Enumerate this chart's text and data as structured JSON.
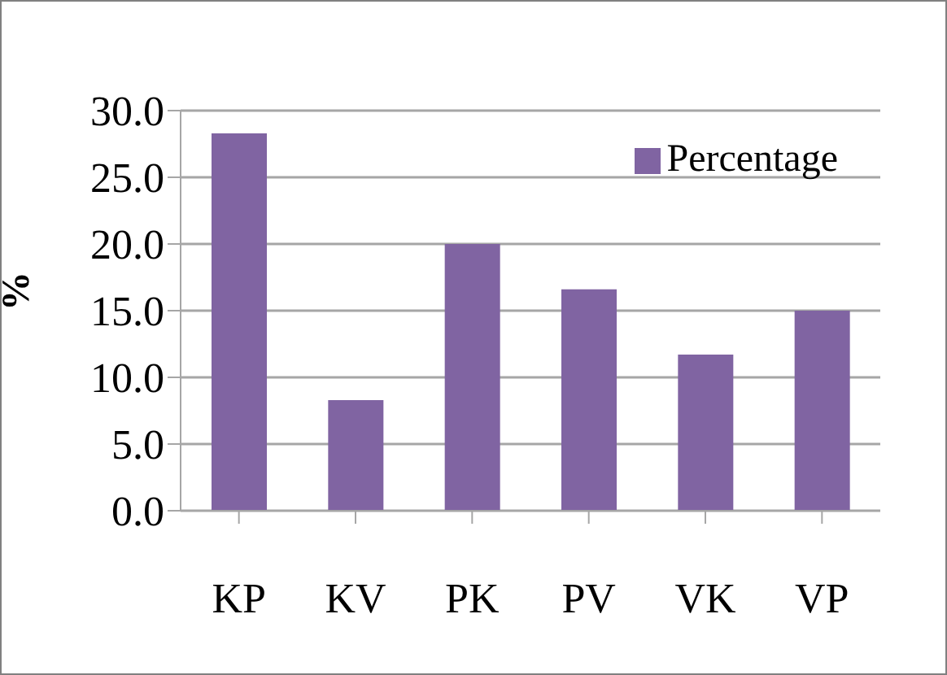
{
  "chart_data": {
    "type": "bar",
    "ylabel": "%",
    "categories": [
      "KP",
      "KV",
      "PK",
      "PV",
      "VK",
      "VP"
    ],
    "series": [
      {
        "name": "Percentage",
        "color": "#8064a2",
        "values": [
          28.3,
          8.3,
          20.0,
          16.6,
          11.7,
          15.0
        ]
      }
    ],
    "ylim": [
      0,
      30
    ],
    "yticks": [
      {
        "value": 0,
        "label": "0.0"
      },
      {
        "value": 5,
        "label": "5.0"
      },
      {
        "value": 10,
        "label": "10.0"
      },
      {
        "value": 15,
        "label": "15.0"
      },
      {
        "value": 20,
        "label": "20.0"
      },
      {
        "value": 25,
        "label": "25.0"
      },
      {
        "value": 30,
        "label": "30.0"
      }
    ],
    "grid": "y",
    "legend": "top right"
  }
}
